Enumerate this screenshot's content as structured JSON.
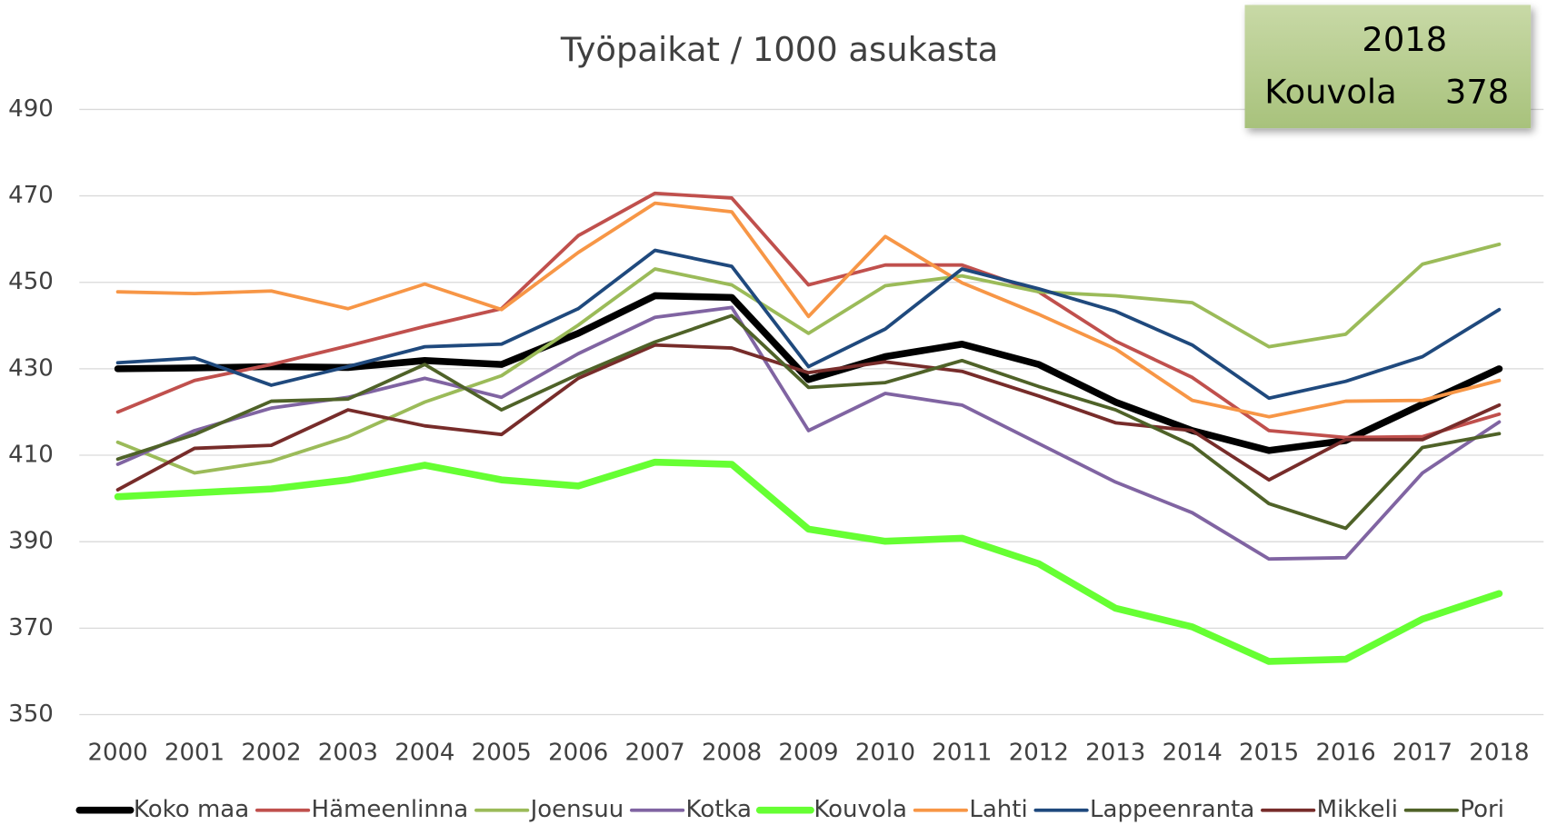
{
  "chart_data": {
    "type": "line",
    "title": "Työpaikat / 1000 asukasta",
    "categories": [
      "2000",
      "2001",
      "2002",
      "2003",
      "2004",
      "2005",
      "2006",
      "2007",
      "2008",
      "2009",
      "2010",
      "2011",
      "2012",
      "2013",
      "2014",
      "2015",
      "2016",
      "2017",
      "2018"
    ],
    "ylim": [
      350,
      490
    ],
    "yticks": [
      350,
      370,
      390,
      410,
      430,
      450,
      470,
      490
    ],
    "grid": true,
    "legend": "bottom",
    "annotation": {
      "title": "2018",
      "label": "Kouvola",
      "value": 378
    },
    "series": [
      {
        "name": "Koko maa",
        "color": "#000000",
        "width": 7,
        "values": [
          430.0,
          430.2,
          430.5,
          430.3,
          431.9,
          431.0,
          438.2,
          446.9,
          446.5,
          427.5,
          432.8,
          435.7,
          431.0,
          422.3,
          415.7,
          411.1,
          413.4,
          421.8,
          430.0
        ]
      },
      {
        "name": "Hämeenlinna",
        "color": "#c0504d",
        "width": 3.5,
        "values": [
          420.0,
          427.3,
          431.0,
          435.3,
          439.8,
          443.9,
          460.8,
          470.6,
          469.5,
          449.4,
          454.0,
          454.0,
          447.8,
          436.4,
          428.0,
          415.7,
          414.1,
          414.3,
          419.5
        ]
      },
      {
        "name": "Joensuu",
        "color": "#9bbb59",
        "width": 3.5,
        "values": [
          413.0,
          405.9,
          408.6,
          414.3,
          422.3,
          428.4,
          440.1,
          453.1,
          449.4,
          438.2,
          449.2,
          451.5,
          447.8,
          446.9,
          445.3,
          435.1,
          438.0,
          454.2,
          458.8
        ]
      },
      {
        "name": "Kotka",
        "color": "#8064a2",
        "width": 3.5,
        "values": [
          407.9,
          415.7,
          420.9,
          423.4,
          427.8,
          423.4,
          433.5,
          441.9,
          444.2,
          415.7,
          424.3,
          421.6,
          412.7,
          403.8,
          396.7,
          386.0,
          386.3,
          405.9,
          417.7
        ]
      },
      {
        "name": "Kouvola",
        "color": "#66ff33",
        "width": 7,
        "values": [
          400.4,
          401.3,
          402.2,
          404.3,
          407.7,
          404.3,
          402.9,
          408.4,
          407.9,
          392.9,
          390.1,
          390.8,
          384.9,
          374.6,
          370.3,
          362.3,
          362.8,
          372.1,
          378.0
        ]
      },
      {
        "name": "Lahti",
        "color": "#f79646",
        "width": 3.5,
        "values": [
          447.8,
          447.4,
          448.0,
          443.9,
          449.6,
          443.7,
          456.9,
          468.3,
          466.3,
          442.1,
          460.6,
          449.9,
          442.6,
          434.6,
          422.7,
          418.9,
          422.5,
          422.7,
          427.3
        ]
      },
      {
        "name": "Lappeenranta",
        "color": "#1f497d",
        "width": 3.5,
        "values": [
          431.4,
          432.5,
          426.2,
          430.5,
          435.1,
          435.7,
          443.9,
          457.4,
          453.7,
          430.5,
          439.2,
          453.1,
          448.5,
          443.3,
          435.5,
          423.2,
          427.1,
          432.8,
          443.7
        ]
      },
      {
        "name": "Mikkeli",
        "color": "#772c2a",
        "width": 3.5,
        "values": [
          402.0,
          411.6,
          412.3,
          420.5,
          416.8,
          414.8,
          427.8,
          435.5,
          434.8,
          429.1,
          431.6,
          429.4,
          423.7,
          417.5,
          415.7,
          404.3,
          413.6,
          413.6,
          421.6
        ]
      },
      {
        "name": "Pori",
        "color": "#4f6228",
        "width": 3.5,
        "values": [
          409.1,
          414.8,
          422.5,
          423.0,
          431.0,
          420.5,
          428.7,
          436.2,
          442.3,
          425.7,
          426.8,
          431.9,
          425.9,
          420.5,
          412.3,
          398.8,
          393.1,
          411.8,
          415.0
        ]
      }
    ]
  }
}
